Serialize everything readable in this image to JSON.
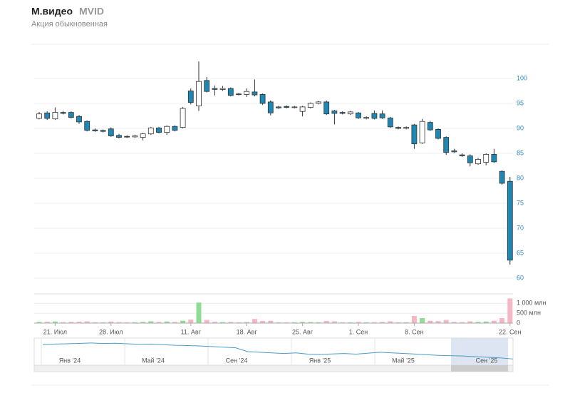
{
  "header": {
    "name": "М.видео",
    "ticker": "MVID",
    "subtitle": "Акция обыкновенная"
  },
  "chart_data": {
    "type": "candlestick",
    "categories": [
      null,
      null,
      "21. Июл",
      null,
      null,
      null,
      null,
      null,
      null,
      "28. Июл",
      null,
      null,
      null,
      null,
      null,
      null,
      null,
      null,
      null,
      "11. Авг",
      null,
      null,
      null,
      null,
      null,
      null,
      "18. Авг",
      null,
      null,
      null,
      null,
      null,
      null,
      "25. Авг",
      null,
      null,
      null,
      null,
      null,
      null,
      "1. Сен",
      null,
      null,
      null,
      null,
      null,
      null,
      "8. Сен",
      null,
      null,
      null,
      null,
      null,
      null,
      null,
      null,
      null,
      null,
      null,
      "22. Сен"
    ],
    "open": [
      92.0,
      93.1,
      91.9,
      93.2,
      93.2,
      92.4,
      91.4,
      89.7,
      89.6,
      89.9,
      88.6,
      88.4,
      88.3,
      88.2,
      88.9,
      90.1,
      89.2,
      90.4,
      90.2,
      97.5,
      94.5,
      99.6,
      98.0,
      97.8,
      98.0,
      96.9,
      96.8,
      97.3,
      96.8,
      95.3,
      94.3,
      94.4,
      94.2,
      93.4,
      94.2,
      95.0,
      95.3,
      93.5,
      93.2,
      92.9,
      93.1,
      92.0,
      93.0,
      92.9,
      92.1,
      90.2,
      90.0,
      90.7,
      87.1,
      91.2,
      89.8,
      88.2,
      85.5,
      84.7,
      84.5,
      82.9,
      83.2,
      84.8,
      81.4,
      79.4
    ],
    "high": [
      93.3,
      93.4,
      94.2,
      93.5,
      93.4,
      92.7,
      91.6,
      90.0,
      89.8,
      90.2,
      88.9,
      88.6,
      88.7,
      89.1,
      90.3,
      90.3,
      90.6,
      90.6,
      94.3,
      98.0,
      103.4,
      100.3,
      98.6,
      98.5,
      98.2,
      97.1,
      98.0,
      99.8,
      97.0,
      95.6,
      94.5,
      94.6,
      94.5,
      94.5,
      95.2,
      95.5,
      95.6,
      93.7,
      93.4,
      93.5,
      93.3,
      92.4,
      93.6,
      93.6,
      92.3,
      90.4,
      90.4,
      90.9,
      91.9,
      91.5,
      90.0,
      88.4,
      85.9,
      85.0,
      84.8,
      84.1,
      85.0,
      85.9,
      81.6,
      80.3
    ],
    "low": [
      91.8,
      91.7,
      91.7,
      92.8,
      92.0,
      90.9,
      89.4,
      89.3,
      89.2,
      88.3,
      88.0,
      88.1,
      88.1,
      87.6,
      88.7,
      89.0,
      88.7,
      89.4,
      90.0,
      94.8,
      93.5,
      97.2,
      96.6,
      97.5,
      96.4,
      96.6,
      96.3,
      96.4,
      94.7,
      92.6,
      93.9,
      94.0,
      94.0,
      92.4,
      94.0,
      94.8,
      92.7,
      90.8,
      92.8,
      92.7,
      91.9,
      91.8,
      91.8,
      91.9,
      90.1,
      89.8,
      89.8,
      85.9,
      86.9,
      89.5,
      87.8,
      84.7,
      85.1,
      84.3,
      82.4,
      82.7,
      82.6,
      83.1,
      78.7,
      62.7
    ],
    "close": [
      92.9,
      92.0,
      93.2,
      93.0,
      92.2,
      91.3,
      89.6,
      89.5,
      89.4,
      88.5,
      88.2,
      88.3,
      88.5,
      88.9,
      90.1,
      89.2,
      90.4,
      89.6,
      94.0,
      95.2,
      99.4,
      97.4,
      97.8,
      98.0,
      96.6,
      96.8,
      97.4,
      96.7,
      95.0,
      93.1,
      94.1,
      94.2,
      94.3,
      94.3,
      95.0,
      95.3,
      92.9,
      93.0,
      93.0,
      93.3,
      92.1,
      92.2,
      92.0,
      92.1,
      90.3,
      90.0,
      90.2,
      86.9,
      91.4,
      89.7,
      88.0,
      85.2,
      85.3,
      84.5,
      83.1,
      83.8,
      84.8,
      83.3,
      79.0,
      63.6
    ],
    "ylim": [
      58,
      104
    ],
    "yticks": [
      60,
      65,
      70,
      75,
      80,
      85,
      90,
      95,
      100
    ],
    "grid": true,
    "up_color": "#ffffff",
    "down_color": "#1f87b3",
    "wick_color": "#333333",
    "volume": {
      "values": [
        60,
        70,
        80,
        50,
        60,
        70,
        90,
        40,
        40,
        80,
        50,
        40,
        40,
        60,
        90,
        60,
        80,
        60,
        120,
        180,
        1040,
        160,
        70,
        50,
        60,
        40,
        50,
        210,
        110,
        120,
        40,
        40,
        40,
        60,
        50,
        40,
        110,
        90,
        40,
        40,
        60,
        40,
        50,
        60,
        90,
        40,
        40,
        360,
        250,
        120,
        100,
        160,
        60,
        50,
        90,
        60,
        80,
        120,
        250,
        1250
      ],
      "ylim": [
        0,
        1300
      ],
      "yticks": [
        0,
        {
          "value": 500,
          "label": "500 млн"
        },
        {
          "value": 1000,
          "label": "1 000 млн"
        }
      ],
      "up_color": "#8fdc95",
      "down_color": "#f7b6c4"
    },
    "navigator": {
      "labels": [
        "Янв '24",
        "Май '24",
        "Сен '24",
        "Янв '25",
        "Май '25",
        "Сен '25"
      ],
      "values": [
        205,
        210,
        212,
        215,
        218,
        214,
        216,
        212,
        208,
        210,
        205,
        200,
        198,
        195,
        190,
        185,
        180,
        150,
        145,
        140,
        135,
        140,
        130,
        128,
        132,
        135,
        130,
        138,
        145,
        140,
        135,
        130,
        125,
        120,
        118,
        115,
        110,
        105,
        100,
        92
      ],
      "ylim": [
        60,
        240
      ],
      "color": "#4b9cc9"
    }
  }
}
